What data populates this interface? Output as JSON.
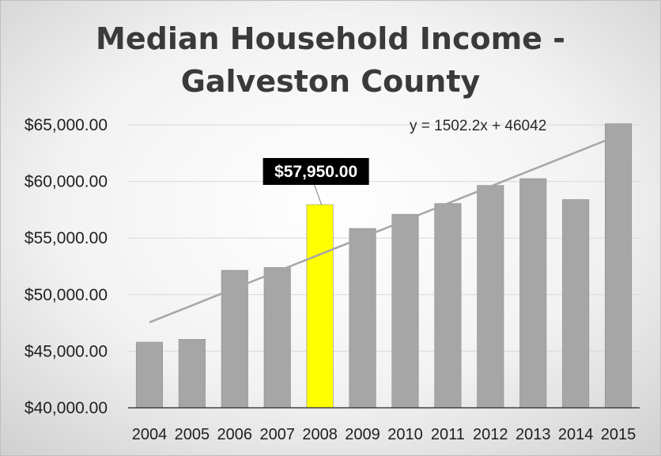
{
  "chart_data": {
    "type": "bar",
    "title_lines": [
      "Median Household Income -",
      "Galveston County"
    ],
    "categories": [
      "2004",
      "2005",
      "2006",
      "2007",
      "2008",
      "2009",
      "2010",
      "2011",
      "2012",
      "2013",
      "2014",
      "2015"
    ],
    "values": [
      45800,
      46050,
      52150,
      52400,
      57950,
      55850,
      57100,
      58050,
      59650,
      60250,
      58400,
      65100
    ],
    "ylim": [
      40000,
      65000
    ],
    "yticks": [
      40000,
      45000,
      50000,
      55000,
      60000,
      65000
    ],
    "ytick_labels": [
      "$40,000.00",
      "$45,000.00",
      "$50,000.00",
      "$55,000.00",
      "$60,000.00",
      "$65,000.00"
    ],
    "grid": true,
    "bar_color": "#a6a6a6",
    "highlight_index": 4,
    "highlight_color": "#ffff00",
    "data_label": {
      "index": 4,
      "text": "$57,950.00"
    },
    "trendline": {
      "type": "linear",
      "slope": 1502.2,
      "intercept": 46042,
      "equation": "y = 1502.2x + 46042",
      "color": "#a6a6a6"
    }
  }
}
